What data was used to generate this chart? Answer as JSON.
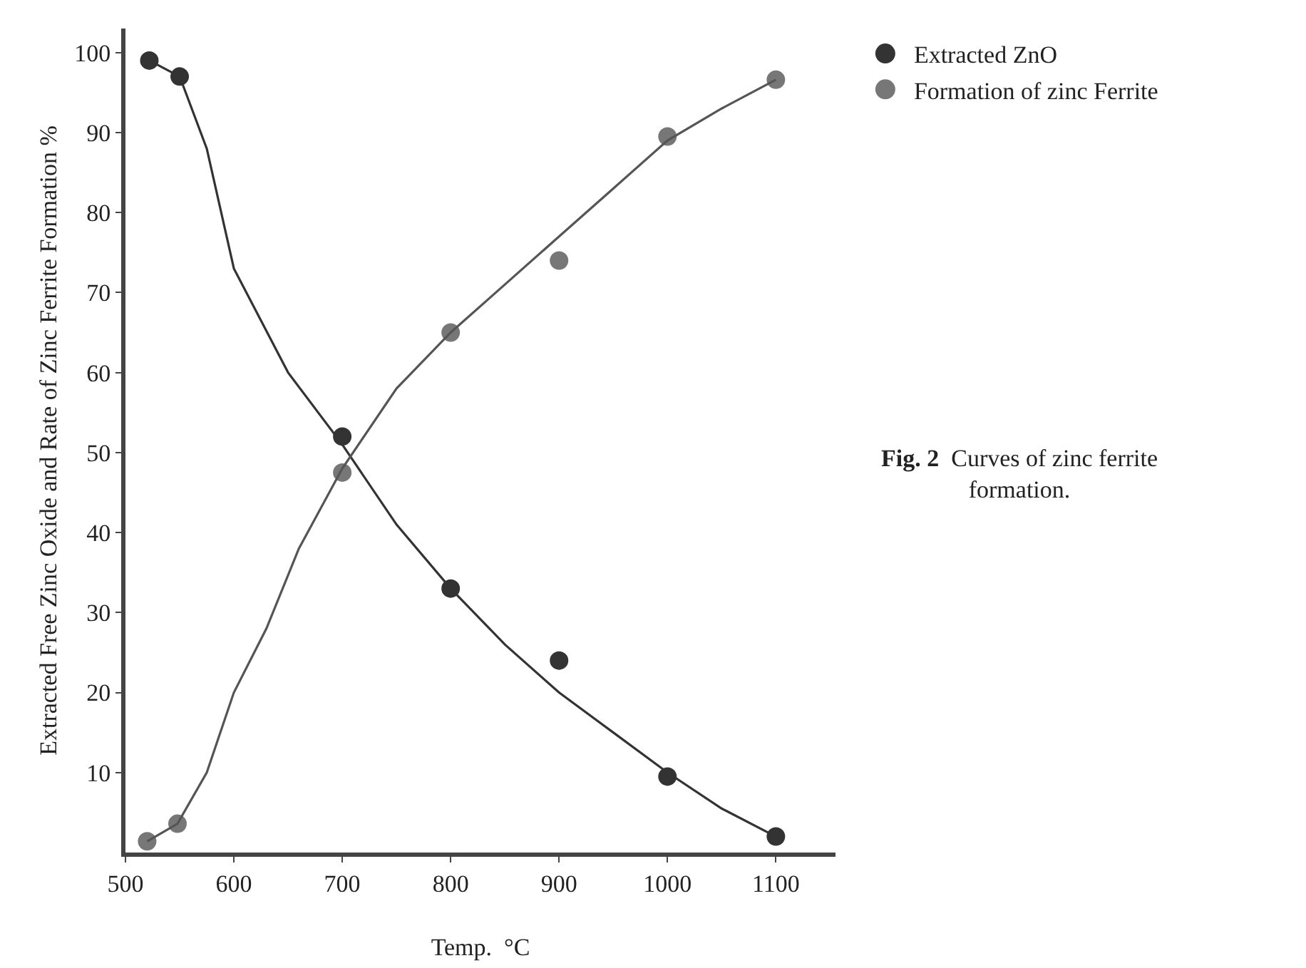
{
  "chart_data": {
    "type": "scatter",
    "xlabel": "Temp.  °C",
    "ylabel": "Extracted Free Zinc Oxide and Rate of Zinc Ferrite Formation %",
    "annotations": [
      "Fig. 2  Curves of zinc ferrite formation."
    ],
    "xlim": [
      500,
      1155
    ],
    "ylim": [
      0,
      103
    ],
    "xticks": [
      500,
      600,
      700,
      800,
      900,
      1000,
      1100
    ],
    "yticks": [
      10,
      20,
      30,
      40,
      50,
      60,
      70,
      80,
      90,
      100
    ],
    "grid": false,
    "legend": "top right",
    "series": [
      {
        "name": "Extracted ZnO",
        "marker": "circle",
        "color": "#333333",
        "x": [
          522,
          550,
          700,
          800,
          900,
          1000,
          1100
        ],
        "values": [
          99,
          97,
          52,
          33,
          24,
          9.5,
          2
        ]
      },
      {
        "name": "Formation of zinc Ferrite",
        "marker": "circle",
        "color": "#777777",
        "x": [
          520,
          548,
          700,
          800,
          900,
          1000,
          1100
        ],
        "values": [
          1.4,
          3.6,
          47.5,
          65,
          74,
          89.5,
          96.6
        ]
      },
      {
        "type": "line",
        "marker": "none",
        "color": "#333333",
        "x": [
          522,
          550,
          575,
          600,
          650,
          700,
          750,
          800,
          850,
          900,
          950,
          1000,
          1050,
          1100
        ],
        "values": [
          99,
          97,
          88,
          73,
          60,
          51,
          41,
          33,
          26,
          20,
          15,
          10,
          5.5,
          2
        ]
      },
      {
        "type": "line",
        "marker": "none",
        "color": "#555555",
        "x": [
          520,
          548,
          575,
          600,
          630,
          660,
          700,
          750,
          800,
          850,
          900,
          950,
          1000,
          1050,
          1100
        ],
        "values": [
          1.4,
          3.6,
          10,
          20,
          28,
          38,
          48,
          58,
          65,
          71,
          77,
          83,
          89,
          93,
          96.6
        ]
      }
    ]
  }
}
